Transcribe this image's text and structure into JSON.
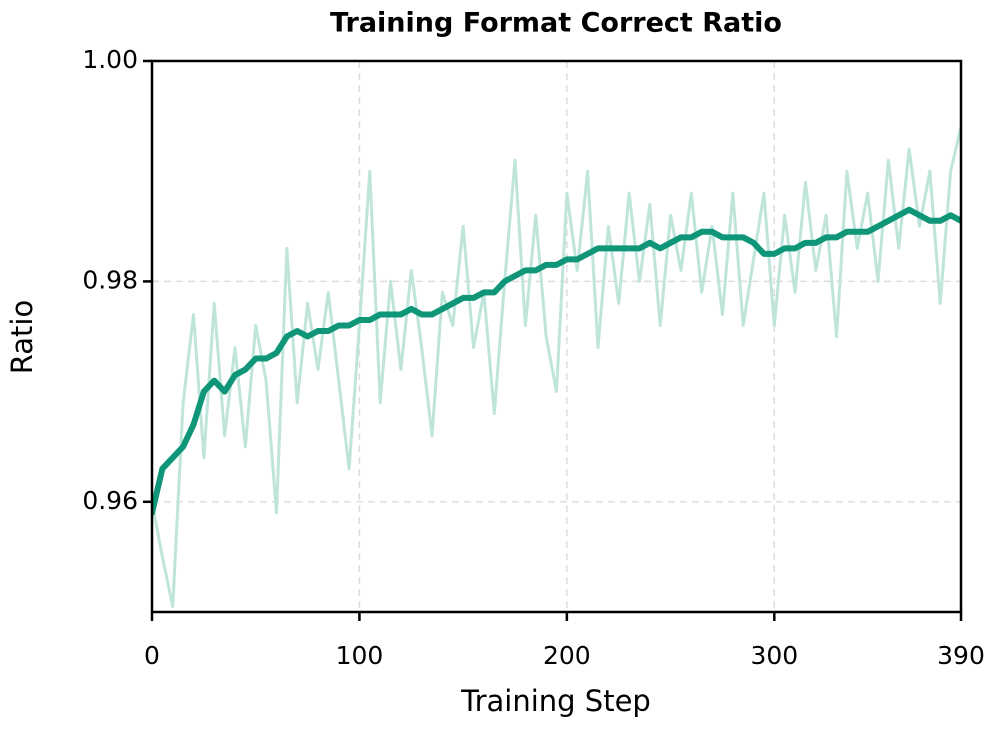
{
  "chart_data": {
    "type": "line",
    "title": "Training Format Correct Ratio",
    "x_label": "Training Step",
    "y_label": "Ratio",
    "x": [
      0,
      5,
      10,
      15,
      20,
      25,
      30,
      35,
      40,
      45,
      50,
      55,
      60,
      65,
      70,
      75,
      80,
      85,
      90,
      95,
      100,
      105,
      110,
      115,
      120,
      125,
      130,
      135,
      140,
      145,
      150,
      155,
      160,
      165,
      170,
      175,
      180,
      185,
      190,
      195,
      200,
      205,
      210,
      215,
      220,
      225,
      230,
      235,
      240,
      245,
      250,
      255,
      260,
      265,
      270,
      275,
      280,
      285,
      290,
      295,
      300,
      305,
      310,
      315,
      320,
      325,
      330,
      335,
      340,
      345,
      350,
      355,
      360,
      365,
      370,
      375,
      380,
      385,
      390
    ],
    "series": [
      {
        "color": "#bfe5db",
        "width": 3,
        "values": [
          0.96,
          0.955,
          0.9505,
          0.969,
          0.977,
          0.964,
          0.978,
          0.966,
          0.974,
          0.965,
          0.976,
          0.971,
          0.959,
          0.983,
          0.969,
          0.978,
          0.972,
          0.979,
          0.971,
          0.963,
          0.976,
          0.99,
          0.969,
          0.98,
          0.972,
          0.981,
          0.974,
          0.966,
          0.979,
          0.976,
          0.985,
          0.974,
          0.979,
          0.968,
          0.98,
          0.991,
          0.976,
          0.986,
          0.975,
          0.97,
          0.988,
          0.981,
          0.99,
          0.974,
          0.985,
          0.978,
          0.988,
          0.98,
          0.987,
          0.976,
          0.986,
          0.981,
          0.988,
          0.979,
          0.985,
          0.977,
          0.988,
          0.976,
          0.982,
          0.988,
          0.976,
          0.986,
          0.979,
          0.989,
          0.981,
          0.986,
          0.975,
          0.99,
          0.983,
          0.988,
          0.98,
          0.991,
          0.983,
          0.992,
          0.985,
          0.99,
          0.978,
          0.99,
          0.994
        ]
      },
      {
        "color": "#0f9577",
        "width": 6,
        "values": [
          0.959,
          0.963,
          0.964,
          0.965,
          0.967,
          0.97,
          0.971,
          0.97,
          0.9715,
          0.972,
          0.973,
          0.973,
          0.9735,
          0.975,
          0.9755,
          0.975,
          0.9755,
          0.9755,
          0.976,
          0.976,
          0.9765,
          0.9765,
          0.977,
          0.977,
          0.977,
          0.9775,
          0.977,
          0.977,
          0.9775,
          0.978,
          0.9785,
          0.9785,
          0.979,
          0.979,
          0.98,
          0.9805,
          0.981,
          0.981,
          0.9815,
          0.9815,
          0.982,
          0.982,
          0.9825,
          0.983,
          0.983,
          0.983,
          0.983,
          0.983,
          0.9835,
          0.983,
          0.9835,
          0.984,
          0.984,
          0.9845,
          0.9845,
          0.984,
          0.984,
          0.984,
          0.9835,
          0.9825,
          0.9825,
          0.983,
          0.983,
          0.9835,
          0.9835,
          0.984,
          0.984,
          0.9845,
          0.9845,
          0.9845,
          0.985,
          0.9855,
          0.986,
          0.9865,
          0.986,
          0.9855,
          0.9855,
          0.986,
          0.9855
        ]
      }
    ],
    "xlim": [
      0,
      390
    ],
    "xticks": [
      0,
      100,
      200,
      300,
      390
    ],
    "ylim": [
      0.95,
      1.0
    ],
    "yticks": [
      0.96,
      0.98,
      {
        "value": 1.0,
        "label": "1.00"
      }
    ],
    "grid": true
  }
}
